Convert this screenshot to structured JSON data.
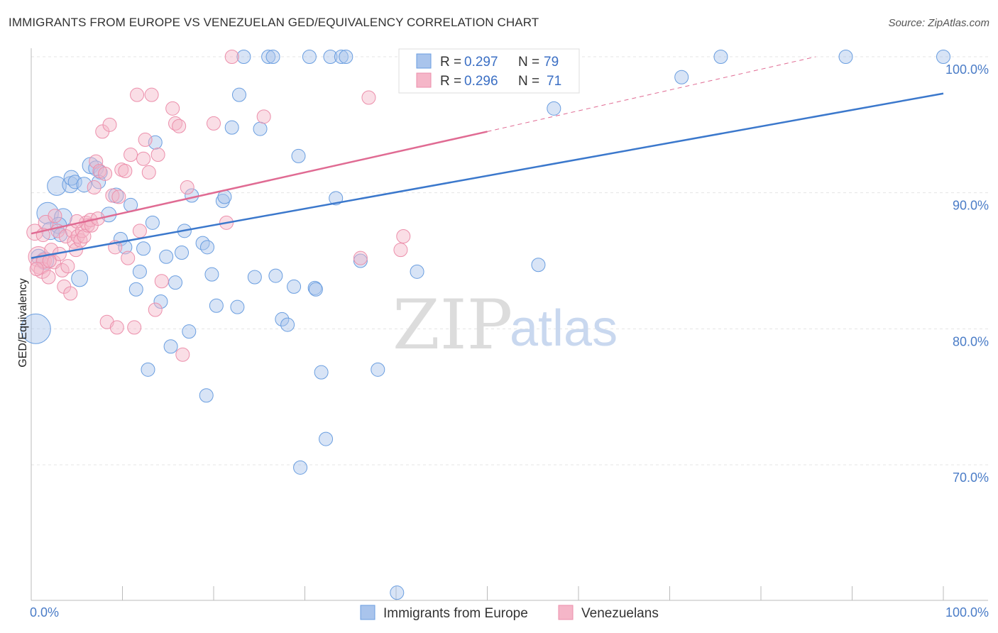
{
  "title": "IMMIGRANTS FROM EUROPE VS VENEZUELAN GED/EQUIVALENCY CORRELATION CHART",
  "source": "Source: ZipAtlas.com",
  "watermark": {
    "part1": "ZIP",
    "part2": "atlas"
  },
  "legend_top": [
    {
      "r_label": "R = ",
      "r_value": "0.297",
      "n_label": "N = ",
      "n_value": "79",
      "color": "#a9c4ec"
    },
    {
      "r_label": "R = ",
      "r_value": "0.296",
      "n_label": "N = ",
      "n_value": "71",
      "color": "#f5b6c8"
    }
  ],
  "legend_bottom": [
    {
      "label": "Immigrants from Europe",
      "color": "#a9c4ec"
    },
    {
      "label": "Venezuelans",
      "color": "#f5b6c8"
    }
  ],
  "chart_data": {
    "type": "scatter",
    "title": "IMMIGRANTS FROM EUROPE VS VENEZUELAN GED/EQUIVALENCY CORRELATION CHART",
    "xlabel": "",
    "ylabel": "GED/Equivalency",
    "xlim": [
      0,
      100
    ],
    "ylim": [
      60.5,
      101.5
    ],
    "x_tick_labels": [
      "0.0%",
      "100.0%"
    ],
    "y_ticks": [
      70,
      80,
      90,
      100
    ],
    "y_tick_labels": [
      "70.0%",
      "80.0%",
      "90.0%",
      "100.0%"
    ],
    "grid": true,
    "series": [
      {
        "name": "Immigrants from Europe",
        "color": "#6a9ee0",
        "fill": "#a9c4ec",
        "trend": {
          "x": [
            0,
            100
          ],
          "y": [
            85.2,
            97.3
          ],
          "color": "#3b78cc"
        },
        "points": [
          [
            0.5,
            80.0,
            2.2
          ],
          [
            1.8,
            88.5,
            1.6
          ],
          [
            2.1,
            87.2,
            1.3
          ],
          [
            1.5,
            85.0,
            1.3
          ],
          [
            2.8,
            90.5,
            1.4
          ],
          [
            3.5,
            88.2,
            1.3
          ],
          [
            3.0,
            87.6,
            1.2
          ],
          [
            4.3,
            90.6,
            1.2
          ],
          [
            4.4,
            91.1,
            1.1
          ],
          [
            4.8,
            90.8,
            1.0
          ],
          [
            5.3,
            83.7,
            1.2
          ],
          [
            5.8,
            90.6,
            1.1
          ],
          [
            6.5,
            92.0,
            1.2
          ],
          [
            7.1,
            91.8,
            1.1
          ],
          [
            7.6,
            91.5,
            1.0
          ],
          [
            7.4,
            90.8,
            1.0
          ],
          [
            8.5,
            88.4,
            1.1
          ],
          [
            9.3,
            89.8,
            1.1
          ],
          [
            9.8,
            86.6,
            1.0
          ],
          [
            10.3,
            86.0,
            1.0
          ],
          [
            10.9,
            89.1,
            1.0
          ],
          [
            11.5,
            82.9,
            1.0
          ],
          [
            11.9,
            84.2,
            1.0
          ],
          [
            12.3,
            85.9,
            1.0
          ],
          [
            12.8,
            77.0,
            1.0
          ],
          [
            13.3,
            87.8,
            1.0
          ],
          [
            13.6,
            93.7,
            1.0
          ],
          [
            14.2,
            82.0,
            1.0
          ],
          [
            14.8,
            85.3,
            1.0
          ],
          [
            15.3,
            78.7,
            1.0
          ],
          [
            15.8,
            83.4,
            1.0
          ],
          [
            16.5,
            85.6,
            1.0
          ],
          [
            16.8,
            87.2,
            1.0
          ],
          [
            17.3,
            79.8,
            1.0
          ],
          [
            17.6,
            89.8,
            1.0
          ],
          [
            18.8,
            86.3,
            1.0
          ],
          [
            19.3,
            86.0,
            1.0
          ],
          [
            19.2,
            75.1,
            1.0
          ],
          [
            19.8,
            84.0,
            1.0
          ],
          [
            20.3,
            81.7,
            1.0
          ],
          [
            21.0,
            89.4,
            1.0
          ],
          [
            21.2,
            89.7,
            1.0
          ],
          [
            22.0,
            94.8,
            1.0
          ],
          [
            22.6,
            81.6,
            1.0
          ],
          [
            22.8,
            97.2,
            1.0
          ],
          [
            23.3,
            100.0,
            1.0
          ],
          [
            24.5,
            83.8,
            1.0
          ],
          [
            25.1,
            94.7,
            1.0
          ],
          [
            26.0,
            100.0,
            1.0
          ],
          [
            26.5,
            100.0,
            1.0
          ],
          [
            26.8,
            83.9,
            1.0
          ],
          [
            27.5,
            80.7,
            1.0
          ],
          [
            28.1,
            80.3,
            1.0
          ],
          [
            28.8,
            83.1,
            1.0
          ],
          [
            29.5,
            69.8,
            1.0
          ],
          [
            29.3,
            92.7,
            1.0
          ],
          [
            30.5,
            100.0,
            1.0
          ],
          [
            31.1,
            83.0,
            1.0
          ],
          [
            31.2,
            82.9,
            1.0
          ],
          [
            31.8,
            76.8,
            1.0
          ],
          [
            32.3,
            71.9,
            1.0
          ],
          [
            32.8,
            100.0,
            1.0
          ],
          [
            33.4,
            89.6,
            1.0
          ],
          [
            34.0,
            100.0,
            1.0
          ],
          [
            34.5,
            100.0,
            1.0
          ],
          [
            36.1,
            85.0,
            1.0
          ],
          [
            38.0,
            77.0,
            1.0
          ],
          [
            40.1,
            60.6,
            1.0
          ],
          [
            42.3,
            84.2,
            1.0
          ],
          [
            46.5,
            100.0,
            1.0
          ],
          [
            53.3,
            100.0,
            1.0
          ],
          [
            55.6,
            84.7,
            1.0
          ],
          [
            57.3,
            96.2,
            1.0
          ],
          [
            71.3,
            98.5,
            1.0
          ],
          [
            75.6,
            100.0,
            1.0
          ],
          [
            89.3,
            100.0,
            1.0
          ],
          [
            100.0,
            100.0,
            1.0
          ],
          [
            0.8,
            85.3,
            1.1
          ],
          [
            3.2,
            86.9,
            1.0
          ]
        ]
      },
      {
        "name": "Venezuelans",
        "color": "#ec8fab",
        "fill": "#f5b6c8",
        "trend": {
          "x": [
            0,
            50
          ],
          "y": [
            87.0,
            94.5
          ],
          "dash_x": [
            50,
            86
          ],
          "dash_y": [
            94.5,
            100.0
          ],
          "color": "#e06b93"
        },
        "points": [
          [
            0.4,
            87.1,
            1.2
          ],
          [
            0.8,
            85.3,
            1.5
          ],
          [
            1.0,
            84.7,
            1.4
          ],
          [
            1.2,
            84.3,
            1.2
          ],
          [
            1.4,
            85.0,
            1.1
          ],
          [
            1.6,
            87.8,
            1.1
          ],
          [
            1.9,
            83.8,
            1.0
          ],
          [
            2.2,
            85.8,
            1.0
          ],
          [
            2.5,
            84.9,
            1.0
          ],
          [
            2.6,
            88.3,
            1.0
          ],
          [
            2.9,
            87.2,
            1.0
          ],
          [
            3.1,
            85.5,
            1.0
          ],
          [
            3.4,
            84.3,
            1.0
          ],
          [
            3.6,
            83.1,
            1.0
          ],
          [
            3.8,
            86.8,
            1.0
          ],
          [
            4.0,
            84.6,
            1.0
          ],
          [
            4.3,
            82.6,
            1.0
          ],
          [
            4.5,
            87.2,
            1.0
          ],
          [
            4.7,
            86.4,
            1.0
          ],
          [
            4.9,
            85.8,
            1.0
          ],
          [
            5.1,
            86.8,
            1.0
          ],
          [
            5.4,
            86.5,
            1.0
          ],
          [
            5.6,
            87.2,
            1.0
          ],
          [
            5.8,
            86.8,
            1.0
          ],
          [
            6.0,
            87.8,
            1.0
          ],
          [
            6.2,
            87.6,
            1.0
          ],
          [
            6.5,
            88.0,
            1.0
          ],
          [
            6.6,
            87.6,
            1.0
          ],
          [
            6.9,
            90.4,
            1.0
          ],
          [
            7.1,
            92.3,
            1.0
          ],
          [
            7.5,
            91.6,
            1.0
          ],
          [
            7.8,
            94.5,
            1.0
          ],
          [
            8.1,
            91.4,
            1.0
          ],
          [
            8.3,
            80.5,
            1.0
          ],
          [
            8.6,
            95.0,
            1.0
          ],
          [
            8.9,
            89.8,
            1.0
          ],
          [
            9.2,
            86.0,
            1.0
          ],
          [
            9.4,
            80.1,
            1.0
          ],
          [
            9.6,
            89.7,
            1.0
          ],
          [
            9.9,
            91.7,
            1.0
          ],
          [
            10.3,
            91.6,
            1.0
          ],
          [
            10.6,
            85.2,
            1.0
          ],
          [
            10.9,
            92.8,
            1.0
          ],
          [
            11.3,
            80.1,
            1.0
          ],
          [
            11.6,
            97.2,
            1.0
          ],
          [
            11.9,
            87.2,
            1.0
          ],
          [
            12.3,
            92.5,
            1.0
          ],
          [
            12.5,
            93.9,
            1.0
          ],
          [
            12.9,
            91.5,
            1.0
          ],
          [
            13.2,
            97.2,
            1.0
          ],
          [
            13.6,
            81.4,
            1.0
          ],
          [
            13.9,
            92.8,
            1.0
          ],
          [
            14.3,
            83.5,
            1.0
          ],
          [
            15.5,
            96.2,
            1.0
          ],
          [
            15.8,
            95.1,
            1.0
          ],
          [
            16.2,
            94.9,
            1.0
          ],
          [
            16.6,
            78.1,
            1.0
          ],
          [
            17.1,
            90.4,
            1.0
          ],
          [
            20.0,
            95.1,
            1.0
          ],
          [
            21.4,
            87.8,
            1.0
          ],
          [
            22.0,
            100.0,
            1.0
          ],
          [
            25.5,
            95.6,
            1.0
          ],
          [
            36.1,
            85.2,
            1.0
          ],
          [
            37.0,
            97.0,
            1.0
          ],
          [
            40.5,
            85.8,
            1.0
          ],
          [
            40.8,
            86.8,
            1.0
          ],
          [
            1.3,
            86.9,
            1.0
          ],
          [
            2.0,
            85.0,
            1.0
          ],
          [
            0.6,
            84.4,
            1.0
          ],
          [
            5.0,
            87.9,
            1.0
          ],
          [
            7.3,
            88.1,
            1.0
          ]
        ]
      }
    ]
  }
}
